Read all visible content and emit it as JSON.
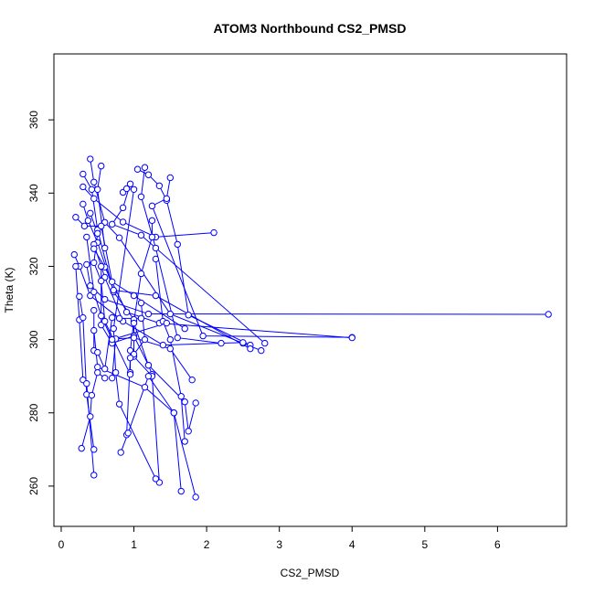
{
  "chart_data": {
    "type": "line",
    "title": "ATOM3 Northbound CS2_PMSD",
    "xlabel": "CS2_PMSD",
    "ylabel": "Theta (K)",
    "xlim": [
      -0.1,
      6.95
    ],
    "ylim": [
      249,
      378
    ],
    "x_ticks": [
      0,
      1,
      2,
      3,
      4,
      5,
      6
    ],
    "y_ticks": [
      260,
      280,
      300,
      320,
      340,
      360
    ],
    "grid": false,
    "legend": "none",
    "series_color": "#0000ff",
    "marker": "open-circle",
    "series": [
      {
        "values": [
          [
            0.3,
            341.7
          ],
          [
            0.45,
            338.5
          ],
          [
            0.85,
            332.1
          ],
          [
            1.3,
            328
          ],
          [
            2.1,
            329.2
          ]
        ]
      },
      {
        "values": [
          [
            0.4,
            349.3
          ],
          [
            0.45,
            343
          ],
          [
            0.6,
            332
          ],
          [
            0.8,
            327.8
          ],
          [
            1.5,
            307
          ],
          [
            2.5,
            299
          ],
          [
            2.75,
            297
          ]
        ]
      },
      {
        "values": [
          [
            0.55,
            347.4
          ],
          [
            0.5,
            341
          ],
          [
            0.6,
            325
          ]
        ]
      },
      {
        "values": [
          [
            1.15,
            347
          ],
          [
            1.1,
            339
          ],
          [
            1.3,
            325
          ],
          [
            1.6,
            300.5
          ],
          [
            2.2,
            299
          ]
        ]
      },
      {
        "values": [
          [
            1.05,
            346.5
          ],
          [
            1.2,
            345
          ],
          [
            1.35,
            342
          ],
          [
            1.45,
            338
          ],
          [
            1.6,
            326
          ],
          [
            1.75,
            306.7
          ],
          [
            2.6,
            298.5
          ]
        ]
      },
      {
        "values": [
          [
            0.3,
            345.2
          ],
          [
            0.42,
            341
          ],
          [
            0.5,
            330
          ],
          [
            0.72,
            313
          ],
          [
            1.0,
            305.5
          ]
        ]
      },
      {
        "values": [
          [
            1.5,
            344.2
          ],
          [
            1.45,
            338.5
          ],
          [
            1.25,
            336.5
          ],
          [
            1.95,
            301
          ],
          [
            4.0,
            300.6
          ]
        ]
      },
      {
        "values": [
          [
            0.95,
            342.5
          ],
          [
            0.85,
            336
          ],
          [
            0.7,
            331.5
          ],
          [
            1.1,
            328.5
          ],
          [
            2.8,
            299
          ]
        ]
      },
      {
        "values": [
          [
            0.3,
            337
          ],
          [
            0.37,
            332.5
          ],
          [
            0.5,
            326.5
          ],
          [
            0.72,
            313.5
          ],
          [
            1.3,
            312
          ],
          [
            2.6,
            297.5
          ]
        ]
      },
      {
        "values": [
          [
            0.2,
            333.4
          ],
          [
            0.32,
            331
          ],
          [
            0.55,
            331
          ],
          [
            0.7,
            315.8
          ],
          [
            1.0,
            312
          ],
          [
            1.7,
            303
          ]
        ]
      },
      {
        "values": [
          [
            0.45,
            326
          ],
          [
            0.6,
            317
          ],
          [
            0.85,
            305
          ],
          [
            1.4,
            298.5
          ],
          [
            2.5,
            299.2
          ]
        ]
      },
      {
        "values": [
          [
            0.35,
            320.5
          ],
          [
            0.4,
            314.7
          ],
          [
            0.6,
            311
          ],
          [
            1.2,
            307
          ],
          [
            6.7,
            306.9
          ]
        ]
      },
      {
        "values": [
          [
            0.45,
            324.8
          ],
          [
            0.6,
            319.8
          ],
          [
            0.9,
            307.5
          ],
          [
            1.35,
            304.5
          ],
          [
            4.0,
            300.5
          ]
        ]
      },
      {
        "values": [
          [
            0.18,
            323.2
          ],
          [
            0.25,
            320
          ],
          [
            0.4,
            312
          ],
          [
            0.8,
            305.8
          ],
          [
            1.1,
            305.8
          ]
        ]
      },
      {
        "values": [
          [
            0.2,
            320
          ],
          [
            0.25,
            305.4
          ],
          [
            0.3,
            289
          ],
          [
            0.35,
            288
          ],
          [
            0.45,
            263
          ]
        ]
      },
      {
        "values": [
          [
            0.25,
            311.8
          ],
          [
            0.3,
            306
          ],
          [
            0.35,
            285
          ],
          [
            0.45,
            270
          ]
        ]
      },
      {
        "values": [
          [
            0.45,
            308
          ],
          [
            0.45,
            297
          ],
          [
            0.5,
            296.5
          ],
          [
            0.6,
            292
          ],
          [
            0.7,
            306
          ]
        ]
      },
      {
        "values": [
          [
            0.55,
            320
          ],
          [
            0.55,
            304
          ],
          [
            0.7,
            299
          ],
          [
            1.0,
            301
          ],
          [
            1.2,
            293
          ],
          [
            1.25,
            290.5
          ]
        ]
      },
      {
        "values": [
          [
            1.25,
            332.5
          ],
          [
            1.25,
            328
          ],
          [
            1.1,
            318
          ],
          [
            1.0,
            305
          ],
          [
            0.95,
            297
          ],
          [
            0.95,
            291
          ]
        ]
      },
      {
        "values": [
          [
            1.0,
            305.5
          ],
          [
            1.0,
            295.4
          ],
          [
            1.25,
            290
          ],
          [
            1.35,
            261
          ]
        ]
      },
      {
        "values": [
          [
            0.85,
            340.2
          ],
          [
            0.9,
            341.2
          ],
          [
            1.0,
            341
          ],
          [
            0.72,
            303
          ],
          [
            0.75,
            291
          ],
          [
            0.8,
            282.4
          ],
          [
            1.3,
            262
          ]
        ]
      },
      {
        "values": [
          [
            1.1,
            310
          ],
          [
            1.15,
            300
          ],
          [
            1.0,
            296
          ],
          [
            0.95,
            295
          ],
          [
            0.9,
            274
          ]
        ]
      },
      {
        "values": [
          [
            0.82,
            269.2
          ],
          [
            0.92,
            274.5
          ],
          [
            1.2,
            290
          ],
          [
            1.55,
            280
          ],
          [
            1.65,
            258.6
          ]
        ]
      },
      {
        "values": [
          [
            1.3,
            322
          ],
          [
            1.4,
            305
          ],
          [
            1.5,
            300
          ],
          [
            1.65,
            284.5
          ],
          [
            1.7,
            272.2
          ]
        ]
      },
      {
        "values": [
          [
            1.0,
            304.5
          ],
          [
            1.2,
            293
          ],
          [
            1.7,
            283
          ],
          [
            1.75,
            275
          ],
          [
            1.85,
            282.7
          ]
        ]
      },
      {
        "values": [
          [
            0.45,
            302.5
          ],
          [
            0.5,
            292.5
          ],
          [
            1.15,
            287
          ],
          [
            1.55,
            280
          ],
          [
            1.85,
            257
          ]
        ]
      },
      {
        "values": [
          [
            0.28,
            270.3
          ],
          [
            0.4,
            279
          ],
          [
            0.42,
            284.8
          ],
          [
            0.5,
            291
          ],
          [
            0.6,
            289.5
          ]
        ]
      },
      {
        "values": [
          [
            0.7,
            289.5
          ],
          [
            0.75,
            300.2
          ],
          [
            1.0,
            300.5
          ],
          [
            1.5,
            297.5
          ],
          [
            1.8,
            289
          ]
        ]
      },
      {
        "values": [
          [
            0.4,
            334.5
          ],
          [
            0.5,
            329
          ],
          [
            0.45,
            321
          ],
          [
            0.55,
            316
          ],
          [
            0.6,
            305
          ],
          [
            0.95,
            290.5
          ]
        ]
      },
      {
        "values": [
          [
            0.35,
            328
          ],
          [
            0.45,
            313
          ],
          [
            0.55,
            306.5
          ],
          [
            0.7,
            300
          ],
          [
            1.45,
            304.5
          ]
        ]
      }
    ]
  }
}
